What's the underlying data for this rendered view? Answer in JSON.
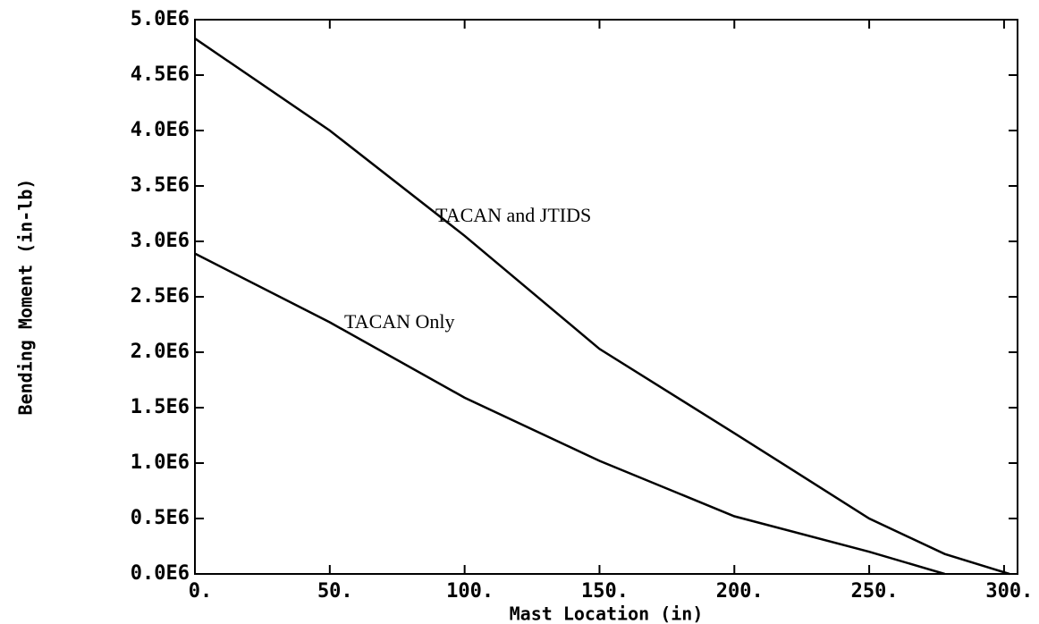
{
  "chart_data": {
    "type": "line",
    "x_label": "Mast Location (in)",
    "y_label": "Bending Moment (in-lb)",
    "annotations": [
      "TACAN and JTIDS",
      "TACAN Only"
    ],
    "x": [
      0,
      50,
      100,
      150,
      200,
      250,
      278,
      302
    ],
    "series": [
      {
        "name": "TACAN and JTIDS",
        "color": "#000000",
        "values": [
          4830000,
          4000000,
          3050000,
          2030000,
          1270000,
          500000,
          180000,
          0
        ]
      },
      {
        "name": "TACAN Only",
        "color": "#000000",
        "values": [
          2890000,
          2270000,
          1590000,
          1020000,
          520000,
          200000,
          0,
          null
        ]
      }
    ],
    "xlim": [
      0,
      305
    ],
    "ylim": [
      0,
      5000000
    ],
    "xticks": [
      {
        "value": 0,
        "label": "0."
      },
      {
        "value": 50,
        "label": "50."
      },
      {
        "value": 100,
        "label": "100."
      },
      {
        "value": 150,
        "label": "150."
      },
      {
        "value": 200,
        "label": "200."
      },
      {
        "value": 250,
        "label": "250."
      },
      {
        "value": 300,
        "label": "300."
      }
    ],
    "yticks": [
      {
        "value": 0,
        "label": "0.0E6"
      },
      {
        "value": 500000,
        "label": "0.5E6"
      },
      {
        "value": 1000000,
        "label": "1.0E6"
      },
      {
        "value": 1500000,
        "label": "1.5E6"
      },
      {
        "value": 2000000,
        "label": "2.0E6"
      },
      {
        "value": 2500000,
        "label": "2.5E6"
      },
      {
        "value": 3000000,
        "label": "3.0E6"
      },
      {
        "value": 3500000,
        "label": "3.5E6"
      },
      {
        "value": 4000000,
        "label": "4.0E6"
      },
      {
        "value": 4500000,
        "label": "4.5E6"
      },
      {
        "value": 5000000,
        "label": "5.0E6"
      }
    ],
    "grid": false
  }
}
